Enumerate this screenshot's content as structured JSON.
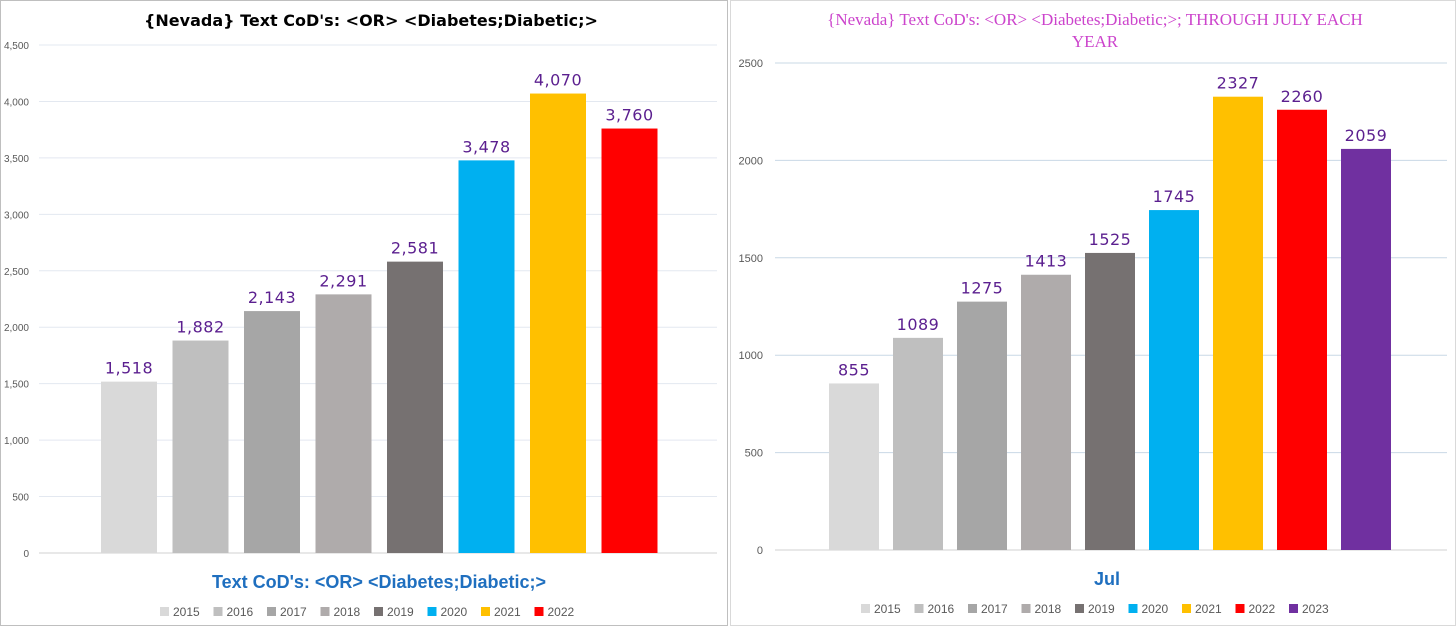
{
  "chart_data": [
    {
      "type": "bar",
      "title": "{Nevada}  Text CoD's: <OR>  <Diabetes;Diabetic;>",
      "xlabel": "Text CoD's: <OR> <Diabetes;Diabetic;>",
      "ylabel": "",
      "ylim": [
        0,
        4500
      ],
      "yticks": [
        0,
        500,
        1000,
        1500,
        2000,
        2500,
        3000,
        3500,
        4000,
        4500
      ],
      "ytick_labels": [
        "0",
        "500",
        "1,000",
        "1,500",
        "2,000",
        "2,500",
        "3,000",
        "3,500",
        "4,000",
        "4,500"
      ],
      "grid": true,
      "legend": "bottom",
      "title_color": "#000000",
      "xlabel_color": "#1f6fbf",
      "label_color": "#5b1f8f",
      "series": [
        {
          "name": "2015",
          "value": 1518,
          "label": "1,518",
          "color": "#d9d9d9"
        },
        {
          "name": "2016",
          "value": 1882,
          "label": "1,882",
          "color": "#bfbfbf"
        },
        {
          "name": "2017",
          "value": 2143,
          "label": "2,143",
          "color": "#a6a6a6"
        },
        {
          "name": "2018",
          "value": 2291,
          "label": "2,291",
          "color": "#afabab"
        },
        {
          "name": "2019",
          "value": 2581,
          "label": "2,581",
          "color": "#767171"
        },
        {
          "name": "2020",
          "value": 3478,
          "label": "3,478",
          "color": "#00b0f0"
        },
        {
          "name": "2021",
          "value": 4070,
          "label": "4,070",
          "color": "#ffc000"
        },
        {
          "name": "2022",
          "value": 3760,
          "label": "3,760",
          "color": "#ff0000"
        }
      ]
    },
    {
      "type": "bar",
      "title_lines": [
        "{Nevada}  Text CoD's: <OR> <Diabetes;Diabetic;>; THROUGH JULY EACH",
        "YEAR"
      ],
      "xlabel": "Jul",
      "ylabel": "",
      "ylim": [
        0,
        2500
      ],
      "yticks": [
        0,
        500,
        1000,
        1500,
        2000,
        2500
      ],
      "ytick_labels": [
        "0",
        "500",
        "1000",
        "1500",
        "2000",
        "2500"
      ],
      "grid": true,
      "legend": "bottom",
      "title_color": "#cc44cc",
      "xlabel_color": "#1f6fbf",
      "label_color": "#5b1f8f",
      "series": [
        {
          "name": "2015",
          "value": 855,
          "label": "855",
          "color": "#d9d9d9"
        },
        {
          "name": "2016",
          "value": 1089,
          "label": "1089",
          "color": "#bfbfbf"
        },
        {
          "name": "2017",
          "value": 1275,
          "label": "1275",
          "color": "#a6a6a6"
        },
        {
          "name": "2018",
          "value": 1413,
          "label": "1413",
          "color": "#afabab"
        },
        {
          "name": "2019",
          "value": 1525,
          "label": "1525",
          "color": "#767171"
        },
        {
          "name": "2020",
          "value": 1745,
          "label": "1745",
          "color": "#00b0f0"
        },
        {
          "name": "2021",
          "value": 2327,
          "label": "2327",
          "color": "#ffc000"
        },
        {
          "name": "2022",
          "value": 2260,
          "label": "2260",
          "color": "#ff0000"
        },
        {
          "name": "2023",
          "value": 2059,
          "label": "2059",
          "color": "#7030a0"
        }
      ]
    }
  ]
}
